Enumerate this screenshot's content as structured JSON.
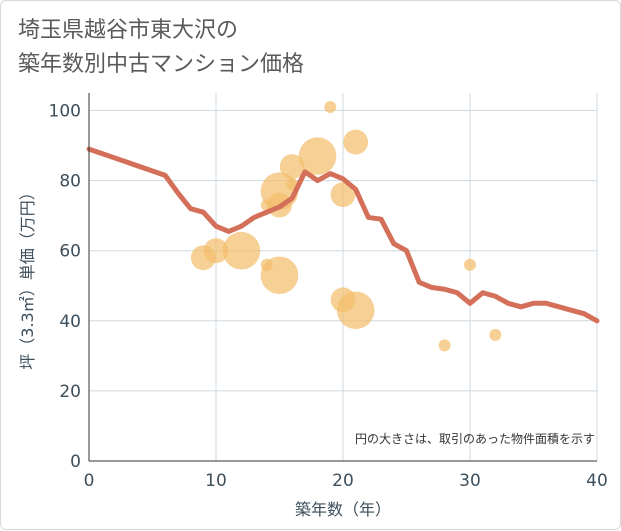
{
  "title_line1": "埼玉県越谷市東大沢の",
  "title_line2": "築年数別中古マンション価格",
  "chart_data": {
    "type": "scatter",
    "xlabel": "築年数（年）",
    "ylabel": "坪（3.3㎡）単価（万円）",
    "xlim": [
      0,
      40
    ],
    "ylim": [
      0,
      105
    ],
    "x_ticks": [
      "0",
      "10",
      "20",
      "30",
      "40"
    ],
    "y_ticks": [
      "0",
      "20",
      "40",
      "60",
      "80",
      "100"
    ],
    "grid": true,
    "note": "円の大きさは、取引のあった物件面積を示す",
    "colors": {
      "bubble": "#f2be6c",
      "line": "#d4705a",
      "grid": "#cfd9e0"
    },
    "bubbles": [
      {
        "x": 9,
        "y": 58,
        "size": 3
      },
      {
        "x": 10,
        "y": 60,
        "size": 3
      },
      {
        "x": 12,
        "y": 60,
        "size": 5
      },
      {
        "x": 14,
        "y": 56,
        "size": 1
      },
      {
        "x": 14,
        "y": 73,
        "size": 1
      },
      {
        "x": 15,
        "y": 53,
        "size": 5
      },
      {
        "x": 15,
        "y": 73,
        "size": 3
      },
      {
        "x": 15,
        "y": 77,
        "size": 5
      },
      {
        "x": 16,
        "y": 79,
        "size": 1
      },
      {
        "x": 16,
        "y": 84,
        "size": 3
      },
      {
        "x": 18,
        "y": 87,
        "size": 5
      },
      {
        "x": 19,
        "y": 101,
        "size": 1
      },
      {
        "x": 20,
        "y": 46,
        "size": 3
      },
      {
        "x": 20,
        "y": 76,
        "size": 3
      },
      {
        "x": 21,
        "y": 43,
        "size": 5
      },
      {
        "x": 21,
        "y": 91,
        "size": 3
      },
      {
        "x": 28,
        "y": 33,
        "size": 1
      },
      {
        "x": 30,
        "y": 56,
        "size": 1
      },
      {
        "x": 32,
        "y": 36,
        "size": 1
      }
    ],
    "line": {
      "x": [
        0,
        6,
        7,
        8,
        9,
        10,
        11,
        12,
        13,
        14,
        15,
        16,
        17,
        18,
        19,
        20,
        21,
        22,
        23,
        24,
        25,
        26,
        27,
        28,
        29,
        30,
        31,
        32,
        33,
        34,
        35,
        36,
        37,
        38,
        39,
        40
      ],
      "y": [
        89,
        81.5,
        76.5,
        72,
        71,
        67,
        65.5,
        67,
        69.5,
        71,
        72.5,
        75,
        82.5,
        80,
        82,
        80.5,
        77.5,
        69.5,
        69,
        62,
        60,
        51,
        49.5,
        49,
        48,
        45,
        48,
        47,
        45,
        44,
        45,
        45,
        44,
        43,
        42,
        40
      ]
    }
  }
}
